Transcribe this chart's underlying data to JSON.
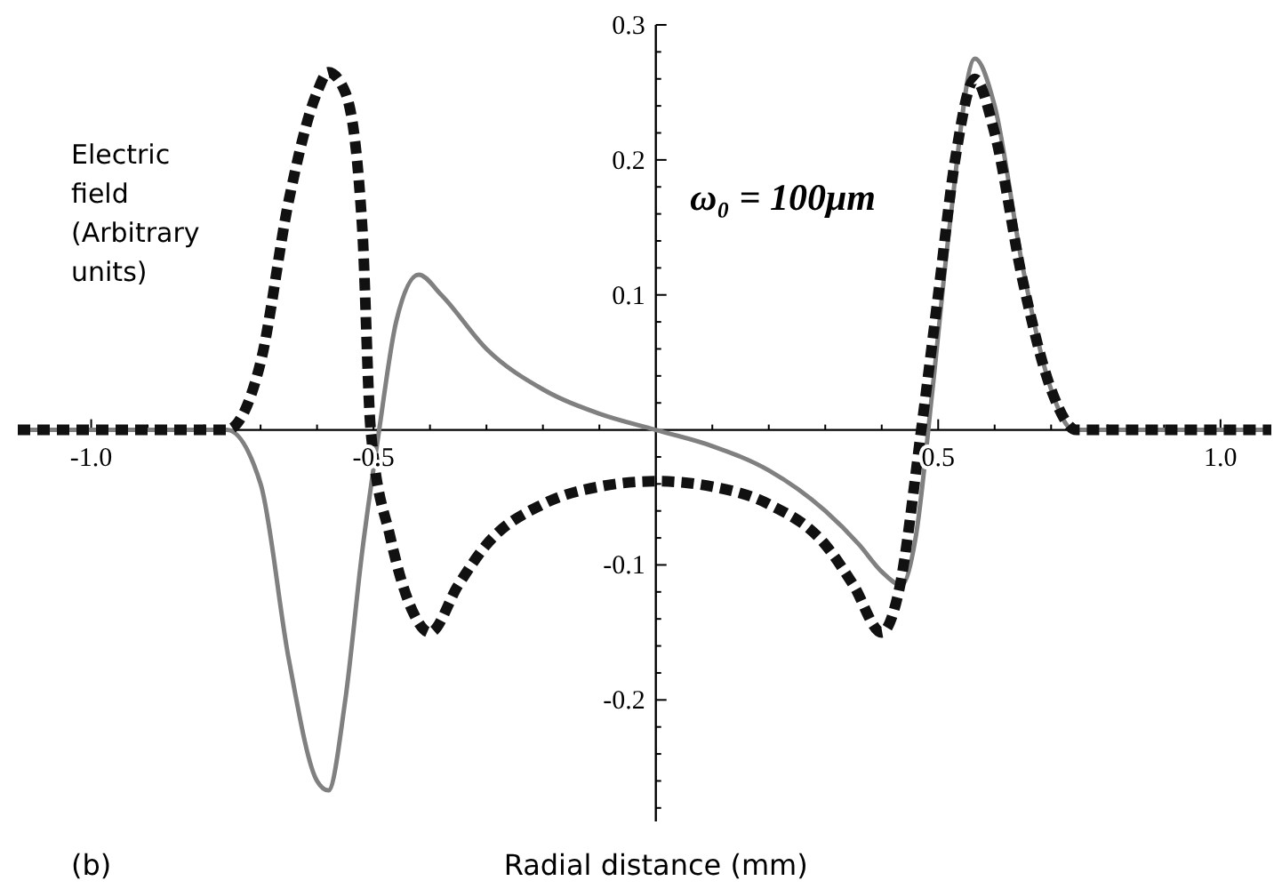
{
  "chart_data": {
    "type": "line",
    "xlabel": "Radial distance (mm)",
    "ylabel": "Electric field (Arbitrary units)",
    "xlim": [
      -1.13,
      1.09
    ],
    "ylim": [
      -0.29,
      0.3
    ],
    "xticks": [
      {
        "value": -1,
        "label": "-1.0"
      },
      {
        "value": -0.9,
        "label": null
      },
      {
        "value": -0.8,
        "label": null
      },
      {
        "value": -0.7,
        "label": null
      },
      {
        "value": -0.6,
        "label": null
      },
      {
        "value": -0.5,
        "label": "-0.5"
      },
      {
        "value": -0.4,
        "label": null
      },
      {
        "value": -0.3,
        "label": null
      },
      {
        "value": -0.2,
        "label": null
      },
      {
        "value": -0.1,
        "label": null
      },
      {
        "value": 0.1,
        "label": null
      },
      {
        "value": 0.2,
        "label": null
      },
      {
        "value": 0.3,
        "label": null
      },
      {
        "value": 0.4,
        "label": null
      },
      {
        "value": 0.5,
        "label": "0.5"
      },
      {
        "value": 0.6,
        "label": null
      },
      {
        "value": 0.7,
        "label": null
      },
      {
        "value": 0.8,
        "label": null
      },
      {
        "value": 0.9,
        "label": null
      },
      {
        "value": 1,
        "label": "1.0"
      }
    ],
    "yticks": [
      {
        "value": -0.28,
        "label": null
      },
      {
        "value": -0.26,
        "label": null
      },
      {
        "value": -0.24,
        "label": null
      },
      {
        "value": -0.22,
        "label": null
      },
      -0.2,
      {
        "value": -0.18,
        "label": null
      },
      {
        "value": -0.16,
        "label": null
      },
      {
        "value": -0.14,
        "label": null
      },
      {
        "value": -0.12,
        "label": null
      },
      -0.1,
      {
        "value": -0.08,
        "label": null
      },
      {
        "value": -0.06,
        "label": null
      },
      {
        "value": -0.04,
        "label": null
      },
      {
        "value": -0.02,
        "label": null
      },
      {
        "value": 0.02,
        "label": null
      },
      {
        "value": 0.04,
        "label": null
      },
      {
        "value": 0.06,
        "label": null
      },
      {
        "value": 0.08,
        "label": null
      },
      0.1,
      {
        "value": 0.12,
        "label": null
      },
      {
        "value": 0.14,
        "label": null
      },
      {
        "value": 0.16,
        "label": null
      },
      {
        "value": 0.18,
        "label": null
      },
      0.2,
      {
        "value": 0.22,
        "label": null
      },
      {
        "value": 0.24,
        "label": null
      },
      {
        "value": 0.26,
        "label": null
      },
      {
        "value": 0.28,
        "label": null
      },
      0.3
    ],
    "grid": false,
    "annotations": [
      "ω₀ = 100μm",
      "(b)"
    ],
    "series": [
      {
        "color": "#808080",
        "line_style": "solid",
        "x": [
          -1.13,
          -0.76,
          -0.7,
          -0.65,
          -0.6,
          -0.58,
          -0.55,
          -0.52,
          -0.49,
          -0.46,
          -0.42,
          -0.38,
          -0.3,
          -0.2,
          -0.1,
          0,
          0.1,
          0.2,
          0.3,
          0.36,
          0.4,
          0.435,
          0.46,
          0.49,
          0.52,
          0.565,
          0.6,
          0.65,
          0.7,
          0.74,
          0.8,
          1.09
        ],
        "values": [
          0,
          0,
          -0.04,
          -0.17,
          -0.26,
          -0.267,
          -0.2,
          -0.09,
          0,
          0.08,
          0.115,
          0.1,
          0.06,
          0.03,
          0.012,
          0,
          -0.012,
          -0.03,
          -0.06,
          -0.085,
          -0.105,
          -0.115,
          -0.08,
          0.03,
          0.15,
          0.275,
          0.24,
          0.12,
          0.03,
          0,
          0,
          0
        ]
      },
      {
        "color": "#111111",
        "line_style": "dashed",
        "x": [
          -1.13,
          -0.76,
          -0.7,
          -0.65,
          -0.6,
          -0.58,
          -0.55,
          -0.52,
          -0.505,
          -0.47,
          -0.43,
          -0.4,
          -0.35,
          -0.3,
          -0.2,
          -0.1,
          0,
          0.1,
          0.2,
          0.3,
          0.35,
          0.4,
          0.43,
          0.47,
          0.5,
          0.53,
          0.565,
          0.6,
          0.65,
          0.7,
          0.745,
          0.8,
          1.09
        ],
        "values": [
          0,
          0,
          0.05,
          0.17,
          0.25,
          0.265,
          0.25,
          0.15,
          0,
          -0.08,
          -0.135,
          -0.15,
          -0.115,
          -0.085,
          -0.055,
          -0.042,
          -0.038,
          -0.042,
          -0.055,
          -0.085,
          -0.115,
          -0.15,
          -0.12,
          0,
          0.1,
          0.2,
          0.26,
          0.22,
          0.11,
          0.03,
          0,
          0,
          0
        ]
      }
    ]
  }
}
